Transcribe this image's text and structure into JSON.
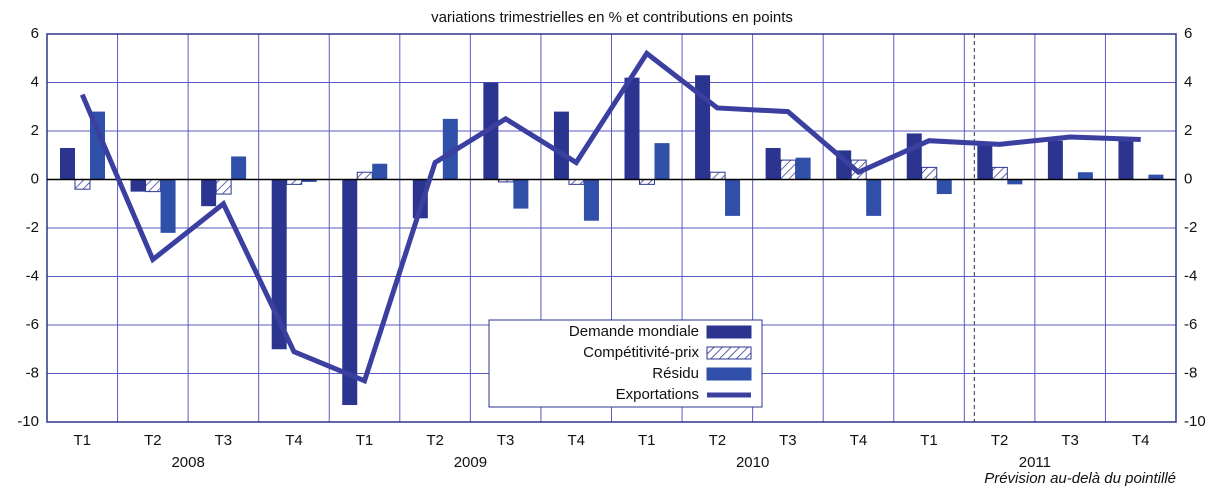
{
  "chart_data": {
    "type": "bar",
    "title": "variations trimestrielles en % et contributions en points",
    "categories": [
      "T1",
      "T2",
      "T3",
      "T4",
      "T1",
      "T2",
      "T3",
      "T4",
      "T1",
      "T2",
      "T3",
      "T4",
      "T1",
      "T2",
      "T3",
      "T4"
    ],
    "years": [
      "2008",
      "2009",
      "2010",
      "2011"
    ],
    "note": "Prévision au-delà du pointillé",
    "series": [
      {
        "name": "Demande mondiale",
        "color": "#2b3590",
        "type": "bar",
        "values": [
          1.3,
          -0.5,
          -1.1,
          -7.0,
          -9.3,
          -1.6,
          4.0,
          2.8,
          4.2,
          4.3,
          1.3,
          1.2,
          1.9,
          1.5,
          1.6,
          1.6
        ]
      },
      {
        "name": "Compétitivité-prix",
        "color": "#2b3590",
        "type": "bar",
        "pattern": "hatch",
        "values": [
          -0.4,
          -0.5,
          -0.6,
          -0.2,
          0.3,
          0.0,
          -0.1,
          -0.2,
          -0.2,
          0.3,
          0.8,
          0.8,
          0.5,
          0.5,
          0.0,
          0.0
        ]
      },
      {
        "name": "Résidu",
        "color": "#2f4fa8",
        "type": "bar",
        "values": [
          2.8,
          -2.2,
          0.95,
          -0.1,
          0.65,
          2.5,
          -1.2,
          -1.7,
          1.5,
          -1.5,
          0.9,
          -1.5,
          -0.6,
          -0.2,
          0.3,
          0.2
        ]
      },
      {
        "name": "Exportations",
        "color": "#3a3fa0",
        "type": "line",
        "values": [
          3.5,
          -3.3,
          -1.0,
          -7.1,
          -8.3,
          0.7,
          2.5,
          0.7,
          5.2,
          2.95,
          2.8,
          0.3,
          1.6,
          1.45,
          1.75,
          1.65
        ]
      }
    ],
    "ylim": [
      -10,
      6
    ],
    "yticks": [
      -10,
      -8,
      -6,
      -4,
      -2,
      0,
      2,
      4,
      6
    ],
    "y2lim": [
      -10,
      6
    ],
    "y2ticks": [
      -10,
      -8,
      -6,
      -4,
      -2,
      0,
      2,
      4,
      6
    ],
    "grid": true
  }
}
